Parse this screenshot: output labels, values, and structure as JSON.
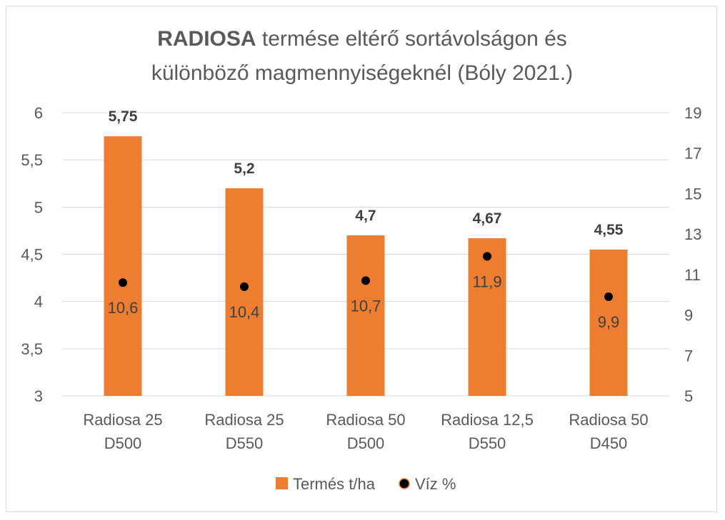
{
  "chart_data": {
    "type": "bar",
    "title_bold": "RADIOSA",
    "title_rest": " termése eltérő sortávolságon és",
    "title_line2": "különböző magmennyiségeknél (Bóly 2021.)",
    "categories": [
      [
        "Radiosa 25",
        "D500"
      ],
      [
        "Radiosa 25",
        "D550"
      ],
      [
        "Radiosa 50",
        "D500"
      ],
      [
        "Radiosa 12,5",
        "D550"
      ],
      [
        "Radiosa 50",
        "D450"
      ]
    ],
    "series": [
      {
        "name": "Termés t/ha",
        "type": "bar",
        "axis": "left",
        "color": "#ed7d31",
        "values": [
          5.75,
          5.2,
          4.7,
          4.67,
          4.55
        ],
        "labels": [
          "5,75",
          "5,2",
          "4,7",
          "4,67",
          "4,55"
        ]
      },
      {
        "name": "Víz %",
        "type": "scatter",
        "axis": "right",
        "color": "#000000",
        "values": [
          10.6,
          10.4,
          10.7,
          11.9,
          9.9
        ],
        "labels": [
          "10,6",
          "10,4",
          "10,7",
          "11,9",
          "9,9"
        ]
      }
    ],
    "y_left": {
      "min": 3,
      "max": 6,
      "ticks": [
        "3",
        "3,5",
        "4",
        "4,5",
        "5",
        "5,5",
        "6"
      ]
    },
    "y_right": {
      "min": 5,
      "max": 19,
      "ticks": [
        "5",
        "7",
        "9",
        "11",
        "13",
        "15",
        "17",
        "19"
      ]
    },
    "grid": true,
    "legend_position": "bottom"
  }
}
